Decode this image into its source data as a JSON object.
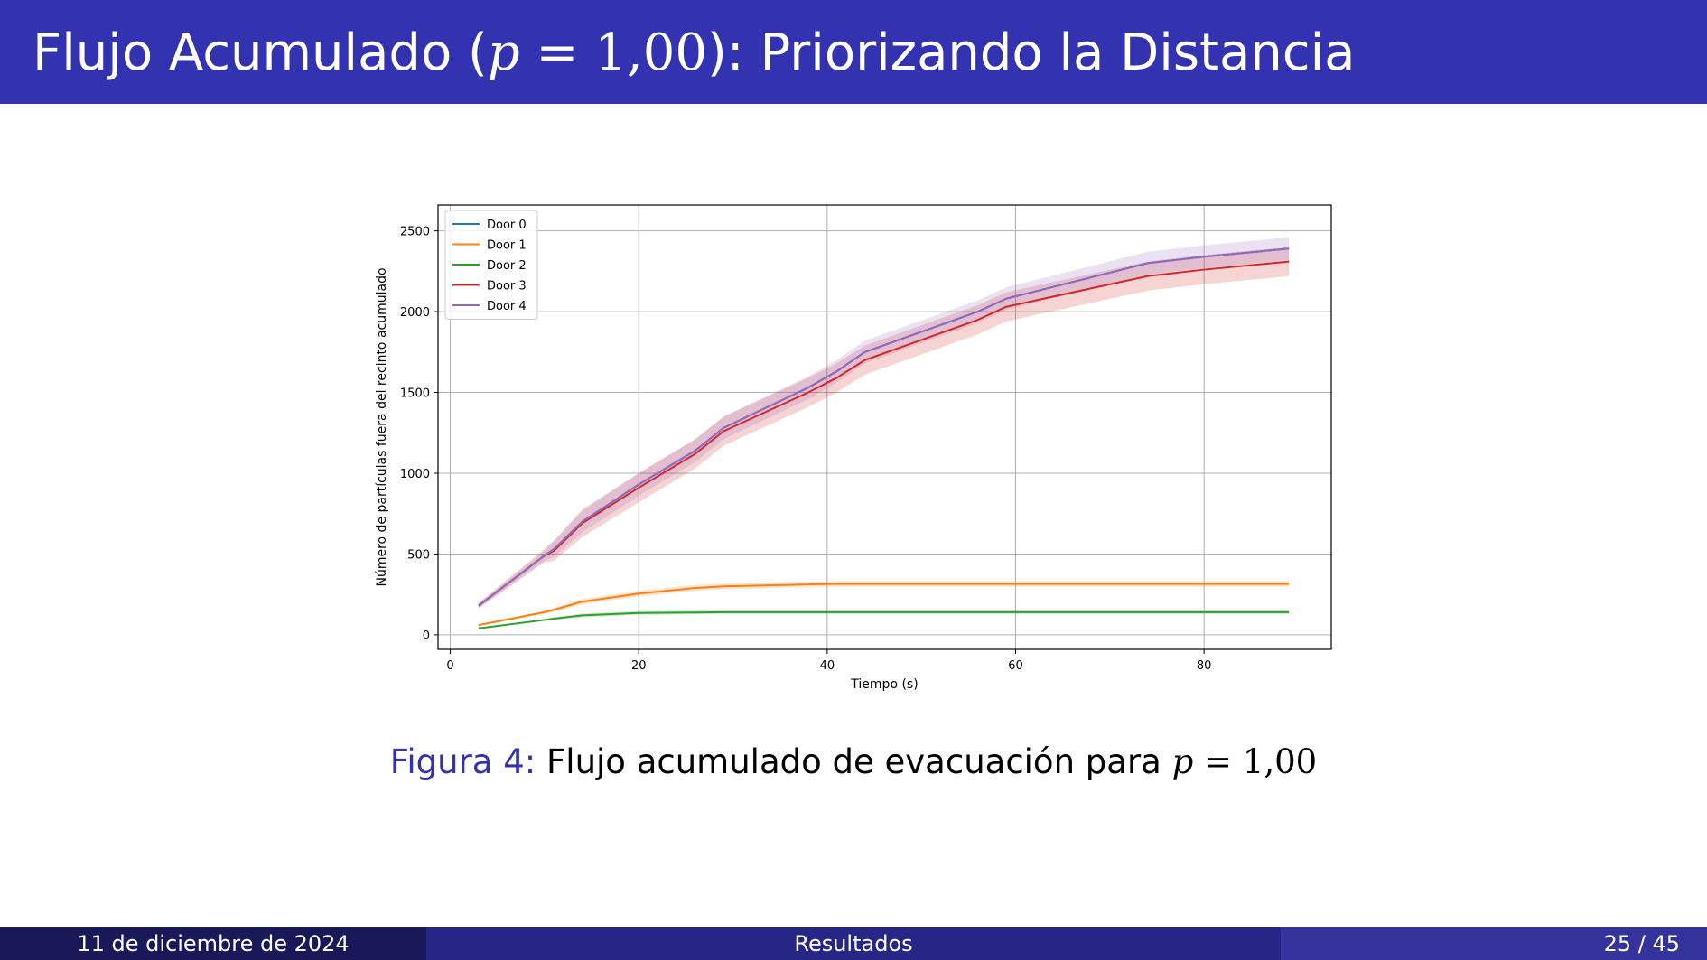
{
  "slide": {
    "title_pre": "Flujo Acumulado (",
    "title_var": "p",
    "title_eq": " = 1,00",
    "title_post": "): Priorizando la Distancia"
  },
  "caption": {
    "label": "Figura 4:",
    "text": "Flujo acumulado de evacuación para ",
    "var": "p",
    "eq": " = 1,00"
  },
  "footer": {
    "date": "11 de diciembre de 2024",
    "section": "Resultados",
    "page": "25 / 45"
  },
  "chart_data": {
    "type": "line",
    "title": "",
    "xlabel": "Tiempo (s)",
    "ylabel": "Número de partículas fuera del recinto acumulado",
    "xlim": [
      -1.3,
      93.5
    ],
    "ylim": [
      -90,
      2660
    ],
    "xticks": [
      0,
      20,
      40,
      60,
      80
    ],
    "yticks": [
      0,
      500,
      1000,
      1500,
      2000,
      2500
    ],
    "grid": true,
    "legend_position": "top-left",
    "x": [
      3,
      10,
      11,
      14,
      20,
      26,
      29,
      38,
      41,
      44,
      56,
      59,
      74,
      80,
      89
    ],
    "series": [
      {
        "name": "Door 0",
        "color": "#1f77b4",
        "values": [
          180,
          490,
          530,
          700,
          930,
          1140,
          1280,
          1530,
          1630,
          1750,
          2000,
          2080,
          2300,
          2340,
          2390
        ],
        "band": 0
      },
      {
        "name": "Door 1",
        "color": "#ff7f0e",
        "values": [
          60,
          140,
          155,
          205,
          255,
          290,
          300,
          312,
          315,
          315,
          315,
          315,
          315,
          315,
          315
        ],
        "band": 18
      },
      {
        "name": "Door 2",
        "color": "#2ca02c",
        "values": [
          40,
          92,
          100,
          120,
          135,
          138,
          140,
          140,
          140,
          140,
          140,
          140,
          140,
          140,
          140
        ],
        "band": 12
      },
      {
        "name": "Door 3",
        "color": "#d62728",
        "values": [
          180,
          490,
          520,
          690,
          910,
          1120,
          1260,
          1500,
          1590,
          1700,
          1950,
          2030,
          2220,
          2260,
          2310
        ],
        "band": 90
      },
      {
        "name": "Door 4",
        "color": "#9467bd",
        "values": [
          180,
          490,
          530,
          700,
          930,
          1140,
          1280,
          1530,
          1630,
          1750,
          2000,
          2080,
          2300,
          2340,
          2390
        ],
        "band": 70
      }
    ]
  }
}
